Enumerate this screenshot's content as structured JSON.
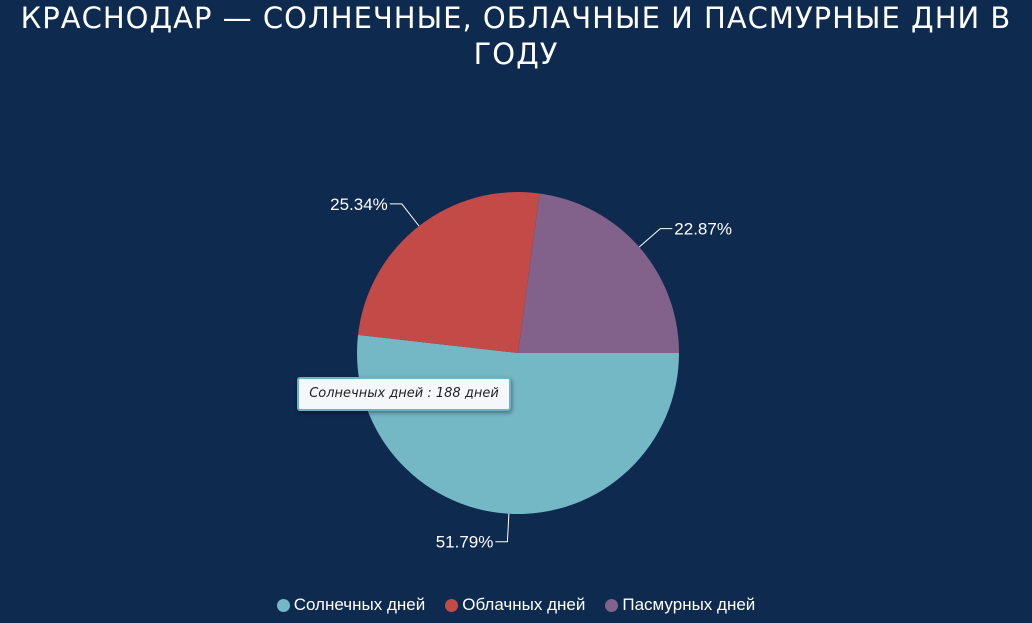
{
  "title_lines": [
    "КРАСНОДАР — СОЛНЕЧНЫЕ, ОБЛАЧНЫЕ И ПАСМУРНЫЕ ДНИ В",
    "ГОДУ"
  ],
  "tooltip": "Солнечных дней : 188 дней",
  "chart_data": {
    "type": "pie",
    "title": "КРАСНОДАР — СОЛНЕЧНЫЕ, ОБЛАЧНЫЕ И ПАСМУРНЫЕ ДНИ В ГОДУ",
    "legend_position": "bottom",
    "slices": [
      {
        "name": "Солнечных дней",
        "value": 188,
        "percent": 51.79,
        "label": "51.79%",
        "color": "#74b8c6"
      },
      {
        "name": "Облачных дней",
        "value": 92,
        "percent": 25.34,
        "label": "25.34%",
        "color": "#c44a48"
      },
      {
        "name": "Пасмурных дней",
        "value": 83,
        "percent": 22.87,
        "label": "22.87%",
        "color": "#82618a"
      }
    ]
  },
  "legend": [
    {
      "label": "Солнечных дней",
      "color": "#74b8c6"
    },
    {
      "label": "Облачных дней",
      "color": "#c44a48"
    },
    {
      "label": "Пасмурных дней",
      "color": "#82618a"
    }
  ]
}
